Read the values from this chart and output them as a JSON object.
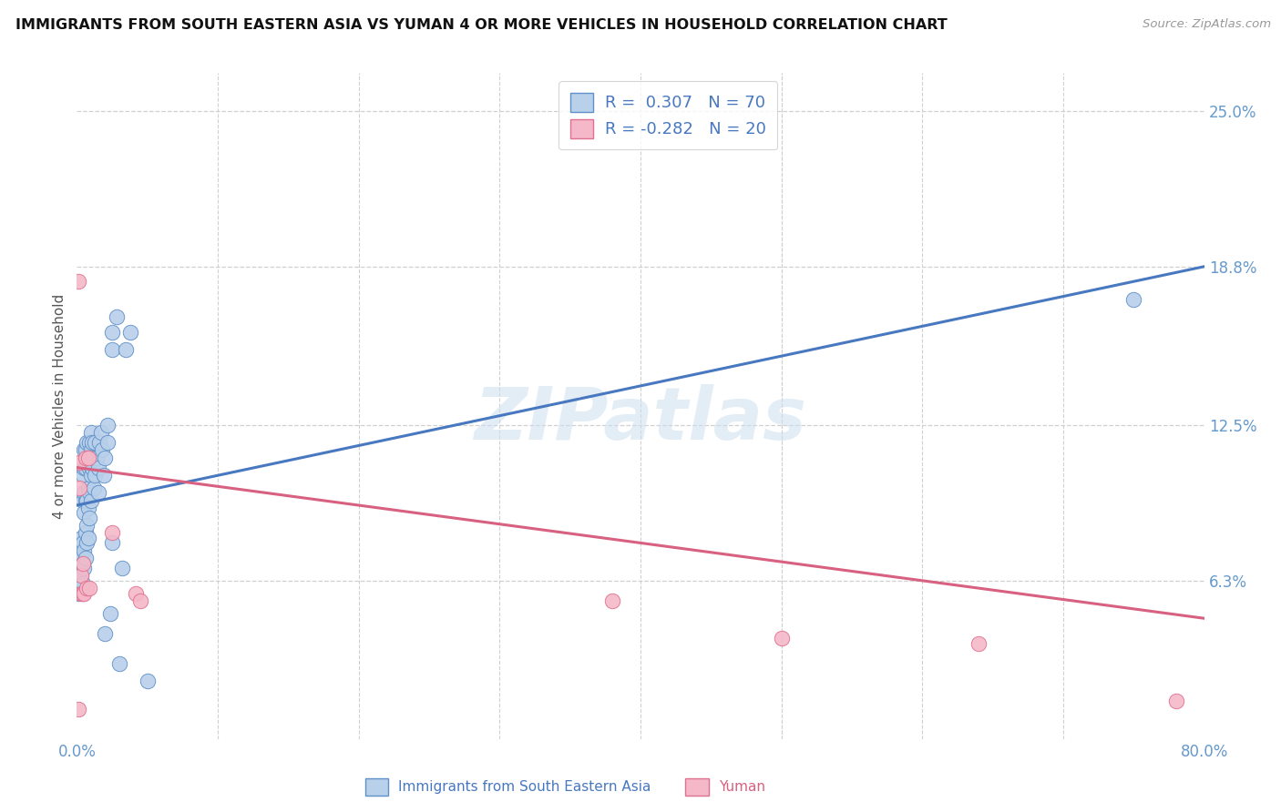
{
  "title": "IMMIGRANTS FROM SOUTH EASTERN ASIA VS YUMAN 4 OR MORE VEHICLES IN HOUSEHOLD CORRELATION CHART",
  "source": "Source: ZipAtlas.com",
  "ylabel": "4 or more Vehicles in Household",
  "watermark": "ZIPatlas",
  "xlim": [
    0.0,
    0.8
  ],
  "ylim": [
    0.0,
    0.265
  ],
  "yticks": [
    0.063,
    0.125,
    0.188,
    0.25
  ],
  "ytick_labels": [
    "6.3%",
    "12.5%",
    "18.8%",
    "25.0%"
  ],
  "xtick_show": [
    0.0,
    0.8
  ],
  "xtick_labels": [
    "0.0%",
    "80.0%"
  ],
  "xtick_minor": [
    0.1,
    0.2,
    0.3,
    0.4,
    0.5,
    0.6,
    0.7
  ],
  "blue_color": "#b8d0ea",
  "pink_color": "#f4b8c8",
  "blue_edge_color": "#6090c8",
  "pink_edge_color": "#e07090",
  "blue_line_color": "#4878c0",
  "pink_line_color": "#d86080",
  "axis_tick_color": "#6699cc",
  "title_color": "#111111",
  "background_color": "#ffffff",
  "grid_color": "#d0d0d0",
  "blue_scatter": [
    [
      0.001,
      0.058
    ],
    [
      0.001,
      0.065
    ],
    [
      0.001,
      0.07
    ],
    [
      0.002,
      0.06
    ],
    [
      0.002,
      0.068
    ],
    [
      0.002,
      0.075
    ],
    [
      0.003,
      0.065
    ],
    [
      0.003,
      0.072
    ],
    [
      0.003,
      0.08
    ],
    [
      0.004,
      0.062
    ],
    [
      0.004,
      0.07
    ],
    [
      0.004,
      0.078
    ],
    [
      0.004,
      0.095
    ],
    [
      0.004,
      0.105
    ],
    [
      0.005,
      0.068
    ],
    [
      0.005,
      0.075
    ],
    [
      0.005,
      0.09
    ],
    [
      0.005,
      0.098
    ],
    [
      0.005,
      0.108
    ],
    [
      0.005,
      0.115
    ],
    [
      0.006,
      0.072
    ],
    [
      0.006,
      0.082
    ],
    [
      0.006,
      0.095
    ],
    [
      0.006,
      0.108
    ],
    [
      0.006,
      0.115
    ],
    [
      0.007,
      0.078
    ],
    [
      0.007,
      0.085
    ],
    [
      0.007,
      0.095
    ],
    [
      0.007,
      0.11
    ],
    [
      0.007,
      0.118
    ],
    [
      0.008,
      0.08
    ],
    [
      0.008,
      0.092
    ],
    [
      0.008,
      0.1
    ],
    [
      0.008,
      0.112
    ],
    [
      0.009,
      0.088
    ],
    [
      0.009,
      0.098
    ],
    [
      0.009,
      0.108
    ],
    [
      0.009,
      0.118
    ],
    [
      0.01,
      0.095
    ],
    [
      0.01,
      0.105
    ],
    [
      0.01,
      0.115
    ],
    [
      0.01,
      0.122
    ],
    [
      0.011,
      0.108
    ],
    [
      0.011,
      0.118
    ],
    [
      0.012,
      0.1
    ],
    [
      0.012,
      0.112
    ],
    [
      0.013,
      0.105
    ],
    [
      0.013,
      0.118
    ],
    [
      0.014,
      0.112
    ],
    [
      0.015,
      0.098
    ],
    [
      0.015,
      0.108
    ],
    [
      0.016,
      0.118
    ],
    [
      0.017,
      0.122
    ],
    [
      0.018,
      0.115
    ],
    [
      0.019,
      0.105
    ],
    [
      0.02,
      0.042
    ],
    [
      0.02,
      0.112
    ],
    [
      0.022,
      0.118
    ],
    [
      0.022,
      0.125
    ],
    [
      0.024,
      0.05
    ],
    [
      0.025,
      0.078
    ],
    [
      0.025,
      0.155
    ],
    [
      0.025,
      0.162
    ],
    [
      0.028,
      0.168
    ],
    [
      0.03,
      0.03
    ],
    [
      0.032,
      0.068
    ],
    [
      0.035,
      0.155
    ],
    [
      0.038,
      0.162
    ],
    [
      0.05,
      0.023
    ],
    [
      0.75,
      0.175
    ]
  ],
  "pink_scatter": [
    [
      0.001,
      0.012
    ],
    [
      0.001,
      0.182
    ],
    [
      0.002,
      0.1
    ],
    [
      0.002,
      0.11
    ],
    [
      0.003,
      0.058
    ],
    [
      0.003,
      0.065
    ],
    [
      0.004,
      0.058
    ],
    [
      0.004,
      0.07
    ],
    [
      0.005,
      0.058
    ],
    [
      0.006,
      0.112
    ],
    [
      0.007,
      0.06
    ],
    [
      0.008,
      0.112
    ],
    [
      0.009,
      0.06
    ],
    [
      0.025,
      0.082
    ],
    [
      0.042,
      0.058
    ],
    [
      0.045,
      0.055
    ],
    [
      0.38,
      0.055
    ],
    [
      0.5,
      0.04
    ],
    [
      0.64,
      0.038
    ],
    [
      0.78,
      0.015
    ]
  ],
  "blue_trend_x": [
    0.0,
    0.8
  ],
  "blue_trend_y": [
    0.093,
    0.188
  ],
  "pink_trend_x": [
    0.0,
    0.8
  ],
  "pink_trend_y": [
    0.108,
    0.048
  ],
  "legend_blue_R_val": "0.307",
  "legend_blue_N_val": "70",
  "legend_pink_R_val": "-0.282",
  "legend_pink_N_val": "20",
  "bottom_label_blue": "Immigrants from South Eastern Asia",
  "bottom_label_pink": "Yuman"
}
